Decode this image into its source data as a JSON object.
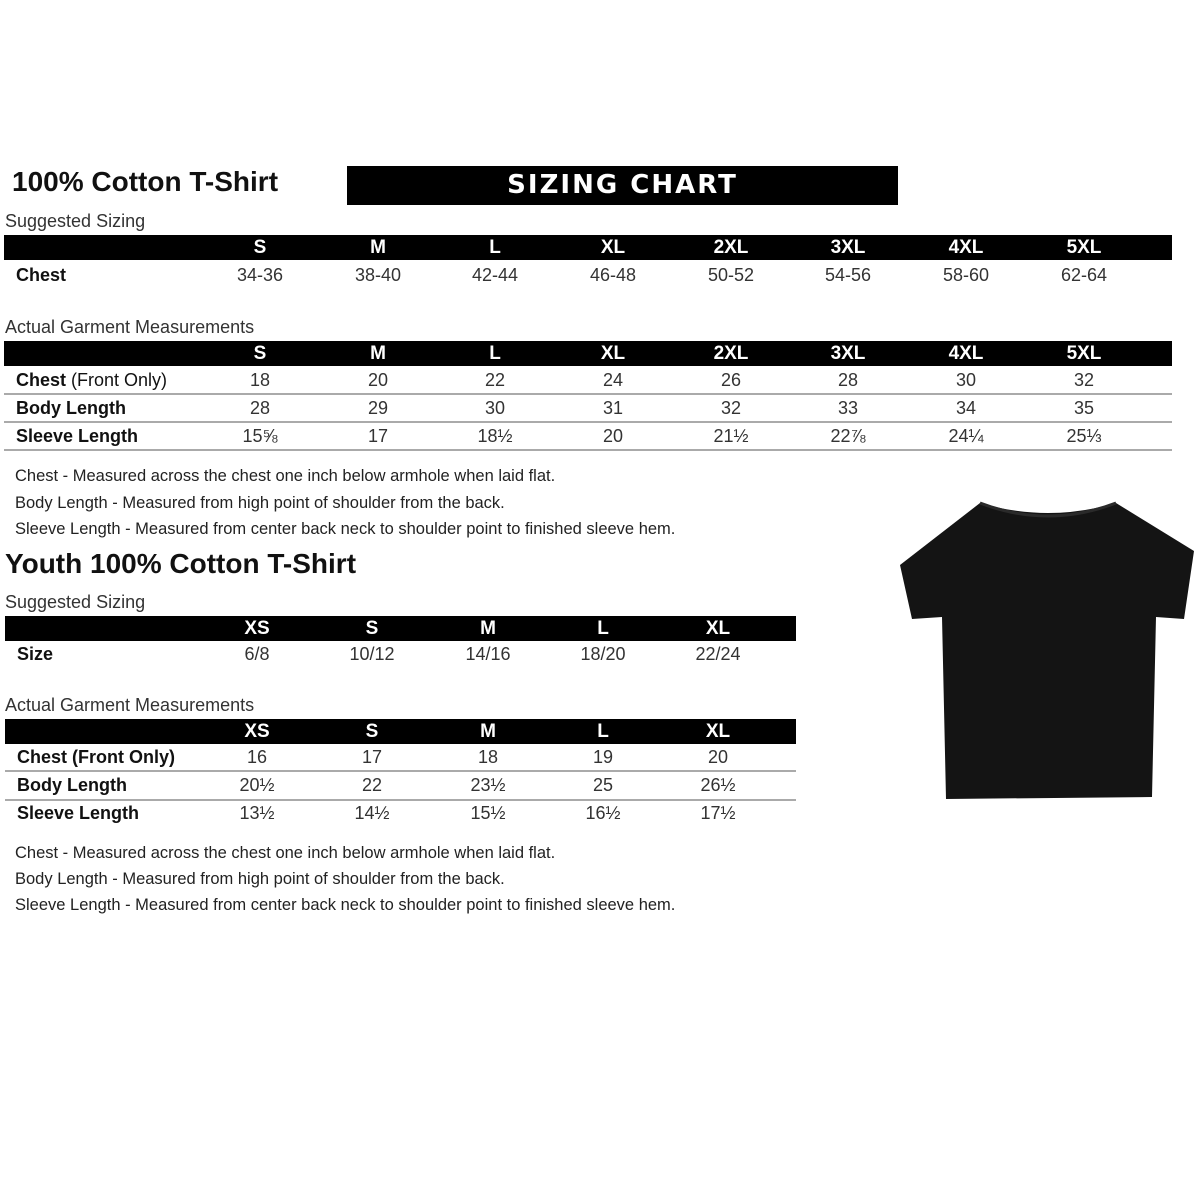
{
  "adult": {
    "title": "100% Cotton T-Shirt",
    "banner": "SIZING CHART",
    "suggested_label": "Suggested Sizing",
    "sizes": [
      "S",
      "M",
      "L",
      "XL",
      "2XL",
      "3XL",
      "4XL",
      "5XL"
    ],
    "suggested_rows": [
      {
        "label": "Chest",
        "values": [
          "34-36",
          "38-40",
          "42-44",
          "46-48",
          "50-52",
          "54-56",
          "58-60",
          "62-64"
        ]
      }
    ],
    "actual_label": "Actual Garment Measurements",
    "actual_rows": [
      {
        "label": "Chest",
        "label_suffix": " (Front Only)",
        "values": [
          "18",
          "20",
          "22",
          "24",
          "26",
          "28",
          "30",
          "32"
        ]
      },
      {
        "label": "Body Length",
        "label_suffix": "",
        "values": [
          "28",
          "29",
          "30",
          "31",
          "32",
          "33",
          "34",
          "35"
        ]
      },
      {
        "label": "Sleeve Length",
        "label_suffix": "",
        "values": [
          "15⅝",
          "17",
          "18½",
          "20",
          "21½",
          "22⅞",
          "24¼",
          "25⅓"
        ]
      }
    ],
    "notes": [
      "Chest - Measured across the chest one inch below armhole when laid flat.",
      "Body Length - Measured from high point of shoulder from the back.",
      "Sleeve Length - Measured from center back neck to shoulder point to finished sleeve hem."
    ]
  },
  "youth": {
    "title": "Youth 100% Cotton T-Shirt",
    "suggested_label": "Suggested Sizing",
    "sizes": [
      "XS",
      "S",
      "M",
      "L",
      "XL"
    ],
    "suggested_rows": [
      {
        "label": "Size",
        "values": [
          "6/8",
          "10/12",
          "14/16",
          "18/20",
          "22/24"
        ]
      }
    ],
    "actual_label": "Actual Garment Measurements",
    "actual_rows": [
      {
        "label": "Chest (Front Only)",
        "label_suffix": "",
        "values": [
          "16",
          "17",
          "18",
          "19",
          "20"
        ]
      },
      {
        "label": "Body Length",
        "label_suffix": "",
        "values": [
          "20½",
          "22",
          "23½",
          "25",
          "26½"
        ]
      },
      {
        "label": "Sleeve Length",
        "label_suffix": "",
        "values": [
          "13½",
          "14½",
          "15½",
          "16½",
          "17½"
        ]
      }
    ],
    "notes": [
      "Chest - Measured across the chest one inch below armhole when laid flat.",
      "Body Length - Measured from high point of shoulder from the back.",
      "Sleeve Length - Measured from center back neck to shoulder point to finished sleeve hem."
    ]
  },
  "image": {
    "icon": "black-tshirt-icon",
    "color": "#141414"
  }
}
